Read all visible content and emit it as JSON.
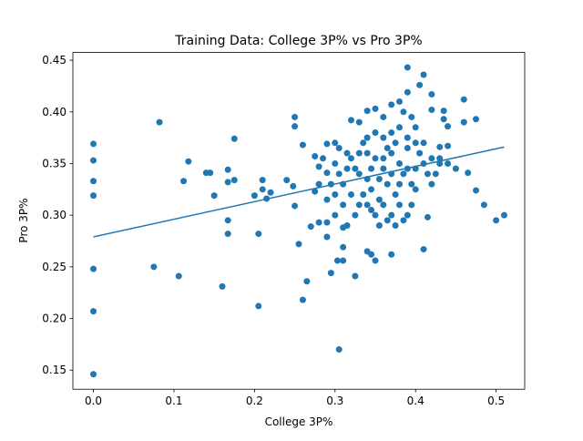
{
  "chart_data": {
    "type": "scatter",
    "title": "Training Data: College 3P% vs Pro 3P%",
    "xlabel": "College 3P%",
    "ylabel": "Pro 3P%",
    "xlim": [
      -0.0255,
      0.5355
    ],
    "ylim": [
      0.1315,
      0.4575
    ],
    "xticks": [
      {
        "value": 0,
        "label": "0.0"
      },
      {
        "value": 0.1,
        "label": "0.1"
      },
      {
        "value": 0.2,
        "label": "0.2"
      },
      {
        "value": 0.3,
        "label": "0.3"
      },
      {
        "value": 0.4,
        "label": "0.4"
      },
      {
        "value": 0.5,
        "label": "0.5"
      }
    ],
    "yticks": [
      0.15,
      {
        "value": 0.2,
        "label": "0.20"
      },
      0.25,
      {
        "value": 0.3,
        "label": "0.30"
      },
      0.35,
      {
        "value": 0.4,
        "label": "0.40"
      },
      0.45
    ],
    "series": [
      {
        "type": "scatter",
        "color": "#1f77b4",
        "x": [
          0,
          0,
          0,
          0,
          0,
          0,
          0,
          0.075,
          0.082,
          0.106,
          0.112,
          0.118,
          0.14,
          0.145,
          0.15,
          0.16,
          0.167,
          0.167,
          0.167,
          0.167,
          0.175,
          0.175,
          0.2,
          0.205,
          0.205,
          0.21,
          0.21,
          0.215,
          0.22,
          0.24,
          0.248,
          0.25,
          0.25,
          0.25,
          0.255,
          0.26,
          0.26,
          0.265,
          0.27,
          0.275,
          0.275,
          0.28,
          0.28,
          0.285,
          0.29,
          0.29,
          0.29,
          0.29,
          0.295,
          0.3,
          0.3,
          0.303,
          0.305,
          0.31,
          0.31,
          0.31,
          0.315,
          0.32,
          0.325,
          0.33,
          0.34,
          0.34,
          0.35,
          0.345,
          0.35,
          0.36,
          0.37,
          0.37,
          0.38,
          0.39,
          0.39,
          0.4,
          0.405,
          0.41,
          0.41,
          0.415,
          0.42,
          0.42,
          0.43,
          0.435,
          0.435,
          0.44,
          0.44,
          0.45,
          0.46,
          0.46,
          0.465,
          0.475,
          0.475,
          0.485,
          0.5,
          0.51,
          0.44,
          0.43,
          0.425,
          0.3,
          0.305,
          0.31,
          0.315,
          0.32,
          0.325,
          0.33,
          0.335,
          0.34,
          0.345,
          0.35,
          0.355,
          0.36,
          0.365,
          0.37,
          0.375,
          0.38,
          0.385,
          0.39,
          0.395,
          0.4,
          0.405,
          0.41,
          0.415,
          0.42,
          0.3,
          0.31,
          0.32,
          0.33,
          0.34,
          0.35,
          0.36,
          0.37,
          0.38,
          0.39,
          0.36,
          0.37,
          0.38,
          0.39,
          0.4,
          0.35,
          0.34,
          0.355,
          0.365,
          0.375,
          0.385,
          0.395,
          0.345,
          0.335,
          0.325,
          0.315,
          0.305,
          0.295,
          0.29,
          0.28,
          0.38,
          0.37,
          0.36,
          0.39,
          0.4,
          0.41,
          0.42,
          0.43,
          0.375,
          0.385,
          0.395,
          0.365,
          0.345,
          0.355,
          0.33,
          0.34
        ],
        "values": [
          0.369,
          0.353,
          0.333,
          0.319,
          0.248,
          0.207,
          0.146,
          0.25,
          0.39,
          0.241,
          0.333,
          0.352,
          0.341,
          0.341,
          0.319,
          0.231,
          0.344,
          0.332,
          0.295,
          0.282,
          0.374,
          0.334,
          0.319,
          0.282,
          0.212,
          0.334,
          0.325,
          0.316,
          0.322,
          0.334,
          0.328,
          0.395,
          0.386,
          0.309,
          0.272,
          0.368,
          0.218,
          0.236,
          0.289,
          0.357,
          0.323,
          0.347,
          0.293,
          0.355,
          0.369,
          0.341,
          0.293,
          0.279,
          0.244,
          0.37,
          0.3,
          0.256,
          0.17,
          0.256,
          0.288,
          0.269,
          0.29,
          0.392,
          0.241,
          0.39,
          0.401,
          0.265,
          0.403,
          0.262,
          0.256,
          0.395,
          0.407,
          0.262,
          0.41,
          0.443,
          0.419,
          0.37,
          0.426,
          0.436,
          0.267,
          0.298,
          0.417,
          0.402,
          0.366,
          0.393,
          0.401,
          0.386,
          0.367,
          0.345,
          0.412,
          0.39,
          0.341,
          0.393,
          0.324,
          0.31,
          0.295,
          0.3,
          0.35,
          0.35,
          0.34,
          0.35,
          0.34,
          0.33,
          0.36,
          0.32,
          0.345,
          0.31,
          0.37,
          0.335,
          0.325,
          0.355,
          0.315,
          0.345,
          0.33,
          0.36,
          0.32,
          0.35,
          0.34,
          0.365,
          0.33,
          0.345,
          0.36,
          0.35,
          0.34,
          0.355,
          0.32,
          0.31,
          0.355,
          0.34,
          0.36,
          0.3,
          0.31,
          0.3,
          0.31,
          0.3,
          0.375,
          0.38,
          0.385,
          0.375,
          0.385,
          0.38,
          0.375,
          0.29,
          0.295,
          0.29,
          0.295,
          0.31,
          0.305,
          0.32,
          0.3,
          0.345,
          0.365,
          0.33,
          0.315,
          0.33,
          0.33,
          0.34,
          0.355,
          0.345,
          0.325,
          0.37,
          0.33,
          0.355,
          0.37,
          0.4,
          0.395,
          0.365,
          0.345,
          0.335,
          0.36,
          0.31
        ]
      },
      {
        "type": "line",
        "color": "#1f77b4",
        "x": [
          0,
          0.51
        ],
        "values": [
          0.279,
          0.366
        ]
      }
    ]
  }
}
